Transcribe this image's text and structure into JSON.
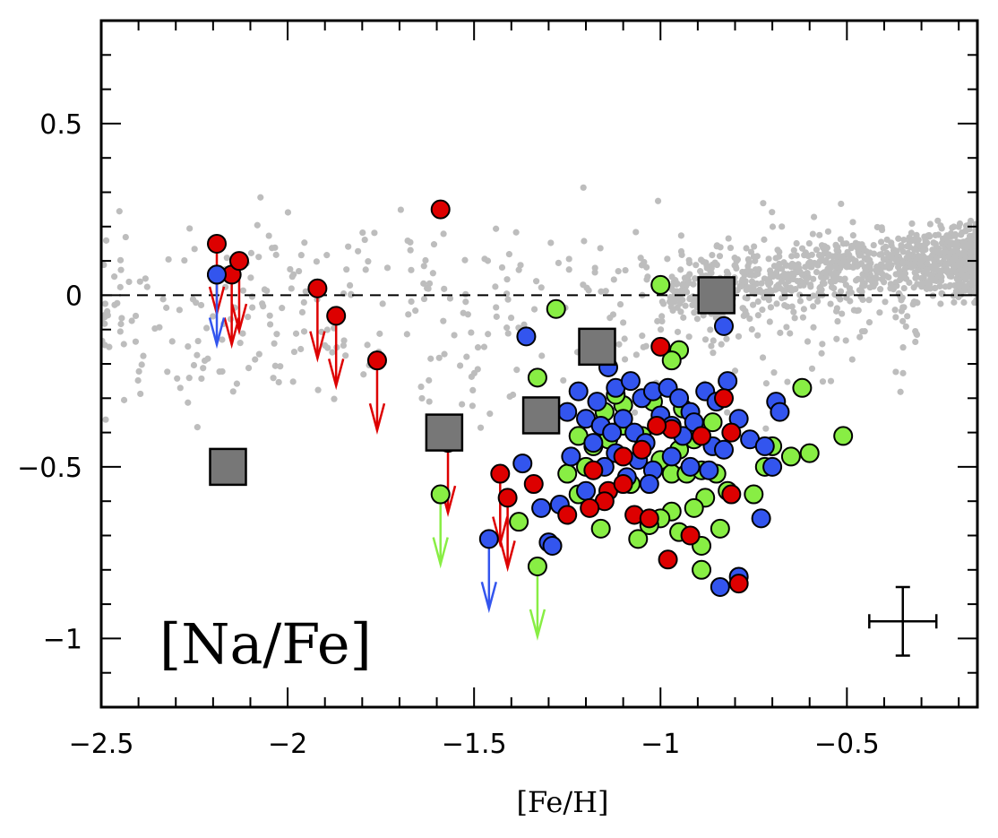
{
  "chart_data": {
    "type": "scatter",
    "title": "",
    "panel_label": "[Na/Fe]",
    "xlabel": "[Fe/H]",
    "ylabel": "",
    "xlim": [
      -2.5,
      -0.15
    ],
    "ylim": [
      -1.2,
      0.8
    ],
    "x_ticks": [
      -2.5,
      -2,
      -1.5,
      -1,
      -0.5
    ],
    "x_tick_labels": [
      "−2.5",
      "−2",
      "−1.5",
      "−1",
      "−0.5"
    ],
    "y_ticks": [
      -1,
      -0.5,
      0,
      0.5
    ],
    "y_tick_labels": [
      "−1",
      "−0.5",
      "0",
      "0.5"
    ],
    "reference_line_y": 0,
    "colors": {
      "background_stars": "#bdbdbd",
      "blue": "#3355ee",
      "red": "#dd0000",
      "green": "#88ee44",
      "squares": "#777777",
      "zero_line": "#000000"
    },
    "error_bar": {
      "x": -0.35,
      "y": -0.95,
      "xerr": 0.09,
      "yerr": 0.1
    },
    "series": [
      {
        "name": "blue",
        "points": [
          [
            -1.36,
            -0.12
          ],
          [
            -0.83,
            -0.09
          ],
          [
            -1.18,
            -0.17
          ],
          [
            -1.14,
            -0.21
          ],
          [
            -1.22,
            -0.28
          ],
          [
            -1.25,
            -0.34
          ],
          [
            -1.17,
            -0.31
          ],
          [
            -1.12,
            -0.27
          ],
          [
            -1.08,
            -0.25
          ],
          [
            -1.05,
            -0.3
          ],
          [
            -1.02,
            -0.28
          ],
          [
            -0.98,
            -0.27
          ],
          [
            -0.95,
            -0.3
          ],
          [
            -0.92,
            -0.34
          ],
          [
            -0.88,
            -0.28
          ],
          [
            -0.85,
            -0.31
          ],
          [
            -0.82,
            -0.25
          ],
          [
            -0.79,
            -0.36
          ],
          [
            -0.76,
            -0.42
          ],
          [
            -0.72,
            -0.44
          ],
          [
            -0.69,
            -0.31
          ],
          [
            -0.68,
            -0.34
          ],
          [
            -0.7,
            -0.5
          ],
          [
            -1.2,
            -0.36
          ],
          [
            -1.16,
            -0.38
          ],
          [
            -1.13,
            -0.4
          ],
          [
            -1.1,
            -0.36
          ],
          [
            -1.07,
            -0.4
          ],
          [
            -1.04,
            -0.43
          ],
          [
            -1.0,
            -0.35
          ],
          [
            -0.97,
            -0.38
          ],
          [
            -0.94,
            -0.41
          ],
          [
            -0.91,
            -0.37
          ],
          [
            -0.86,
            -0.44
          ],
          [
            -0.83,
            -0.45
          ],
          [
            -1.18,
            -0.43
          ],
          [
            -1.12,
            -0.46
          ],
          [
            -1.06,
            -0.48
          ],
          [
            -1.02,
            -0.51
          ],
          [
            -0.97,
            -0.47
          ],
          [
            -0.92,
            -0.5
          ],
          [
            -0.87,
            -0.51
          ],
          [
            -1.15,
            -0.5
          ],
          [
            -1.09,
            -0.53
          ],
          [
            -1.03,
            -0.55
          ],
          [
            -1.24,
            -0.47
          ],
          [
            -1.27,
            -0.61
          ],
          [
            -1.3,
            -0.72
          ],
          [
            -1.32,
            -0.62
          ],
          [
            -1.37,
            -0.49
          ],
          [
            -1.2,
            -0.57
          ],
          [
            -0.84,
            -0.85
          ],
          [
            -0.79,
            -0.82
          ],
          [
            -0.73,
            -0.65
          ],
          [
            -1.29,
            -0.73
          ],
          [
            -2.19,
            0.06
          ]
        ]
      },
      {
        "name": "red",
        "points": [
          [
            -1.59,
            0.25
          ],
          [
            -1.0,
            -0.15
          ],
          [
            -0.83,
            -0.3
          ],
          [
            -0.89,
            -0.41
          ],
          [
            -0.81,
            -0.4
          ],
          [
            -0.97,
            -0.39
          ],
          [
            -1.01,
            -0.38
          ],
          [
            -1.05,
            -0.45
          ],
          [
            -1.1,
            -0.47
          ],
          [
            -1.14,
            -0.57
          ],
          [
            -1.1,
            -0.55
          ],
          [
            -1.18,
            -0.51
          ],
          [
            -1.15,
            -0.6
          ],
          [
            -1.19,
            -0.62
          ],
          [
            -1.25,
            -0.64
          ],
          [
            -1.07,
            -0.64
          ],
          [
            -1.03,
            -0.65
          ],
          [
            -0.92,
            -0.7
          ],
          [
            -0.98,
            -0.77
          ],
          [
            -0.81,
            -0.58
          ],
          [
            -0.79,
            -0.84
          ],
          [
            -1.34,
            -0.55
          ]
        ]
      },
      {
        "name": "green",
        "points": [
          [
            -1.33,
            -0.24
          ],
          [
            -1.28,
            -0.04
          ],
          [
            -1.0,
            0.03
          ],
          [
            -0.95,
            -0.16
          ],
          [
            -0.97,
            -0.19
          ],
          [
            -0.62,
            -0.27
          ],
          [
            -0.51,
            -0.41
          ],
          [
            -0.6,
            -0.46
          ],
          [
            -0.65,
            -0.47
          ],
          [
            -0.72,
            -0.5
          ],
          [
            -0.7,
            -0.44
          ],
          [
            -0.86,
            -0.37
          ],
          [
            -0.91,
            -0.42
          ],
          [
            -0.95,
            -0.45
          ],
          [
            -1.0,
            -0.48
          ],
          [
            -1.05,
            -0.41
          ],
          [
            -1.1,
            -0.38
          ],
          [
            -1.14,
            -0.42
          ],
          [
            -1.18,
            -0.44
          ],
          [
            -1.22,
            -0.41
          ],
          [
            -0.97,
            -0.52
          ],
          [
            -0.93,
            -0.52
          ],
          [
            -0.89,
            -0.51
          ],
          [
            -0.85,
            -0.52
          ],
          [
            -0.82,
            -0.57
          ],
          [
            -0.88,
            -0.59
          ],
          [
            -0.91,
            -0.62
          ],
          [
            -0.97,
            -0.63
          ],
          [
            -1.0,
            -0.65
          ],
          [
            -1.03,
            -0.67
          ],
          [
            -1.06,
            -0.71
          ],
          [
            -0.95,
            -0.69
          ],
          [
            -0.89,
            -0.73
          ],
          [
            -0.89,
            -0.8
          ],
          [
            -0.84,
            -0.68
          ],
          [
            -0.75,
            -0.58
          ],
          [
            -1.16,
            -0.68
          ],
          [
            -1.22,
            -0.58
          ],
          [
            -1.38,
            -0.66
          ],
          [
            -1.15,
            -0.34
          ],
          [
            -1.1,
            -0.32
          ],
          [
            -1.02,
            -0.31
          ],
          [
            -0.94,
            -0.33
          ],
          [
            -1.12,
            -0.29
          ],
          [
            -1.2,
            -0.5
          ],
          [
            -1.08,
            -0.55
          ],
          [
            -1.25,
            -0.52
          ]
        ]
      },
      {
        "name": "grey_squares",
        "points": [
          [
            -2.16,
            -0.5
          ],
          [
            -1.58,
            -0.4
          ],
          [
            -1.32,
            -0.35
          ],
          [
            -1.17,
            -0.15
          ],
          [
            -0.85,
            0.0
          ]
        ]
      }
    ],
    "upper_limits": [
      {
        "color": "red",
        "x": -2.19,
        "y": 0.15
      },
      {
        "color": "red",
        "x": -2.15,
        "y": 0.06
      },
      {
        "color": "red",
        "x": -2.13,
        "y": 0.1
      },
      {
        "color": "blue",
        "x": -2.19,
        "y": 0.06
      },
      {
        "color": "red",
        "x": -1.92,
        "y": 0.02
      },
      {
        "color": "red",
        "x": -1.87,
        "y": -0.06
      },
      {
        "color": "red",
        "x": -1.76,
        "y": -0.19
      },
      {
        "color": "red",
        "x": -1.57,
        "y": -0.43
      },
      {
        "color": "green",
        "x": -1.59,
        "y": -0.58
      },
      {
        "color": "blue",
        "x": -1.46,
        "y": -0.71
      },
      {
        "color": "red",
        "x": -1.43,
        "y": -0.52
      },
      {
        "color": "red",
        "x": -1.41,
        "y": -0.59
      },
      {
        "color": "green",
        "x": -1.33,
        "y": -0.79
      }
    ]
  }
}
